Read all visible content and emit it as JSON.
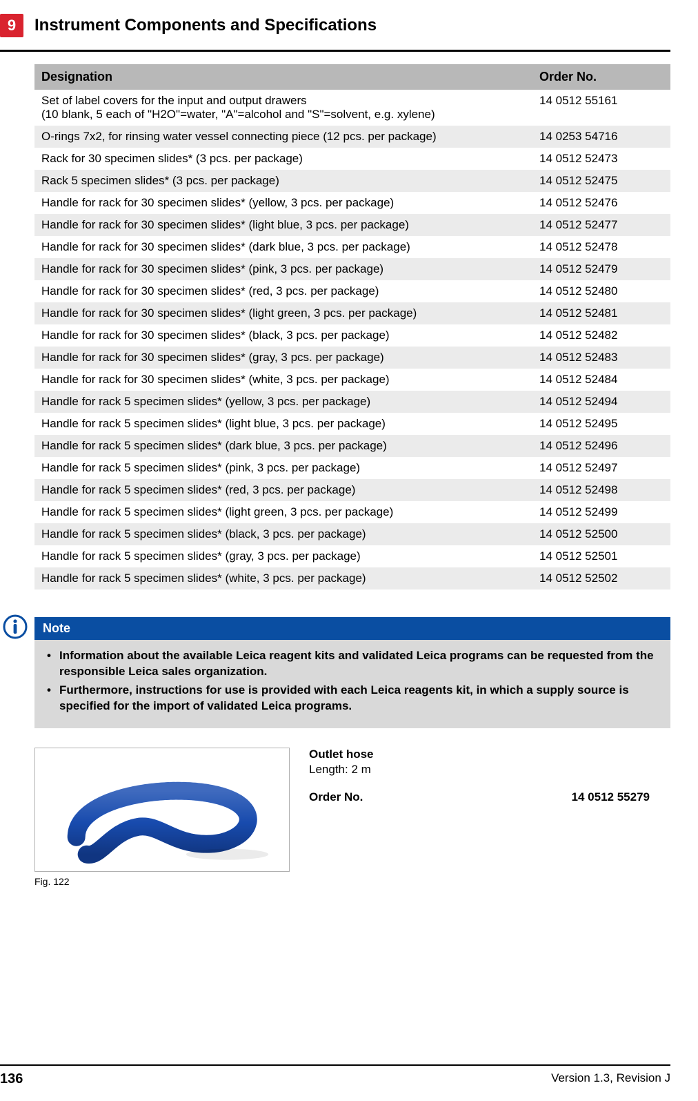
{
  "chapter": {
    "number": "9",
    "title": "Instrument Components and Specifications"
  },
  "table": {
    "headers": {
      "designation": "Designation",
      "order_no": "Order No."
    },
    "rows": [
      {
        "designation": "Set of label covers for the input and output drawers\n(10 blank, 5 each of \"H2O\"=water, \"A\"=alcohol and \"S\"=solvent, e.g. xylene)",
        "order": "14 0512 55161",
        "alt": false
      },
      {
        "designation": "O-rings 7x2, for rinsing water vessel connecting piece (12 pcs. per package)",
        "order": "14 0253 54716",
        "alt": true
      },
      {
        "designation": "Rack for 30 specimen slides* (3 pcs. per package)",
        "order": "14 0512 52473",
        "alt": false
      },
      {
        "designation": "Rack 5 specimen slides* (3 pcs. per package)",
        "order": "14 0512 52475",
        "alt": true
      },
      {
        "designation": "Handle for rack for 30 specimen slides* (yellow, 3 pcs. per package)",
        "order": "14 0512 52476",
        "alt": false
      },
      {
        "designation": "Handle for rack for 30 specimen slides* (light blue, 3 pcs. per package)",
        "order": "14 0512 52477",
        "alt": true
      },
      {
        "designation": "Handle for rack for 30 specimen slides* (dark blue, 3 pcs. per package)",
        "order": "14 0512 52478",
        "alt": false
      },
      {
        "designation": "Handle for rack for 30 specimen slides* (pink, 3 pcs. per package)",
        "order": "14 0512 52479",
        "alt": true
      },
      {
        "designation": "Handle for rack for 30 specimen slides* (red, 3 pcs. per package)",
        "order": "14 0512 52480",
        "alt": false
      },
      {
        "designation": "Handle for rack for 30 specimen slides* (light green, 3 pcs. per package)",
        "order": "14 0512 52481",
        "alt": true
      },
      {
        "designation": "Handle for rack for 30 specimen slides* (black, 3 pcs. per package)",
        "order": "14 0512 52482",
        "alt": false
      },
      {
        "designation": "Handle for rack for 30 specimen slides* (gray, 3 pcs. per package)",
        "order": "14 0512 52483",
        "alt": true
      },
      {
        "designation": "Handle for rack for 30 specimen slides* (white, 3 pcs. per package)",
        "order": "14 0512 52484",
        "alt": false
      },
      {
        "designation": "Handle for rack 5 specimen slides* (yellow, 3 pcs. per package)",
        "order": "14 0512 52494",
        "alt": true
      },
      {
        "designation": "Handle for rack 5 specimen slides* (light blue, 3 pcs. per package)",
        "order": "14 0512 52495",
        "alt": false
      },
      {
        "designation": "Handle for rack 5 specimen slides* (dark blue, 3 pcs. per package)",
        "order": "14 0512 52496",
        "alt": true
      },
      {
        "designation": "Handle for rack 5 specimen slides* (pink, 3 pcs. per package)",
        "order": "14 0512 52497",
        "alt": false
      },
      {
        "designation": "Handle for rack 5 specimen slides* (red, 3 pcs. per package)",
        "order": "14 0512 52498",
        "alt": true
      },
      {
        "designation": "Handle for rack 5 specimen slides* (light green, 3 pcs. per package)",
        "order": "14 0512 52499",
        "alt": false
      },
      {
        "designation": "Handle for rack 5 specimen slides* (black, 3 pcs. per package)",
        "order": "14 0512 52500",
        "alt": true
      },
      {
        "designation": "Handle for rack 5 specimen slides* (gray, 3 pcs. per package)",
        "order": "14 0512 52501",
        "alt": false
      },
      {
        "designation": "Handle for rack 5 specimen slides* (white, 3 pcs. per package)",
        "order": "14 0512 52502",
        "alt": true
      }
    ]
  },
  "note": {
    "title": "Note",
    "items": [
      "Information about the available Leica reagent kits and validated Leica programs can be requested from the responsible Leica sales organization.",
      "Furthermore, instructions for use is provided with each Leica reagents kit, in which a supply source is specified for the import of validated Leica programs."
    ]
  },
  "figure": {
    "caption": "Fig. 122",
    "product_title": "Outlet hose",
    "product_spec": "Length: 2 m",
    "order_label": "Order No.",
    "order_no": "14 0512 55279",
    "hose_color": "#1e5bcf"
  },
  "footer": {
    "page": "136",
    "version": "Version 1.3, Revision J"
  },
  "colors": {
    "badge_bg": "#d9232e",
    "note_header_bg": "#0a4ea2",
    "note_body_bg": "#d9d9d9",
    "table_header_bg": "#b8b8b8",
    "row_alt_bg": "#ebebeb"
  }
}
